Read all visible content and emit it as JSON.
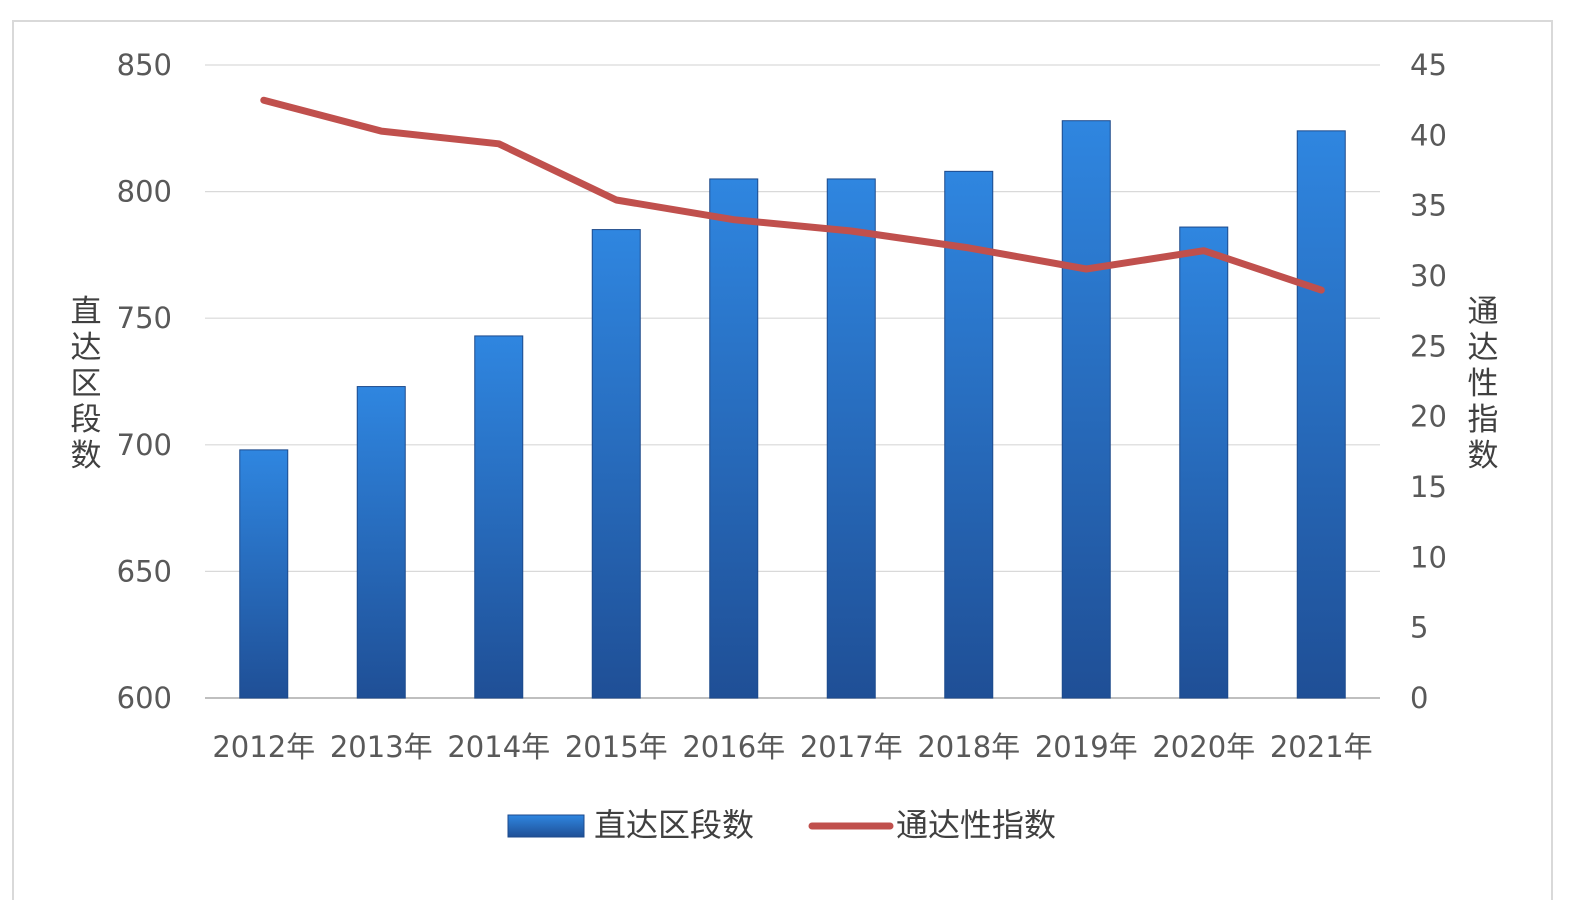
{
  "chart_data": {
    "type": "bar",
    "categories": [
      "2012年",
      "2013年",
      "2014年",
      "2015年",
      "2016年",
      "2017年",
      "2018年",
      "2019年",
      "2020年",
      "2021年"
    ],
    "series": [
      {
        "name": "直达区段数",
        "type": "bar",
        "axis": "left",
        "color": "#2a6ebd",
        "values": [
          698,
          723,
          743,
          785,
          805,
          805,
          808,
          828,
          786,
          824
        ]
      },
      {
        "name": "通达性指数",
        "type": "line",
        "axis": "right",
        "color": "#c0504d",
        "values": [
          42.5,
          40.3,
          39.4,
          35.4,
          34.0,
          33.2,
          32.0,
          30.5,
          31.8,
          29.0
        ]
      }
    ],
    "ylabel": "直达区段数",
    "y2label": "通达性指数",
    "ylim": [
      600,
      850
    ],
    "yticks": [
      600,
      650,
      700,
      750,
      800,
      850
    ],
    "y2lim": [
      0,
      45
    ],
    "y2ticks": [
      0,
      5,
      10,
      15,
      20,
      25,
      30,
      35,
      40,
      45
    ],
    "grid": true,
    "legend_position": "bottom"
  }
}
